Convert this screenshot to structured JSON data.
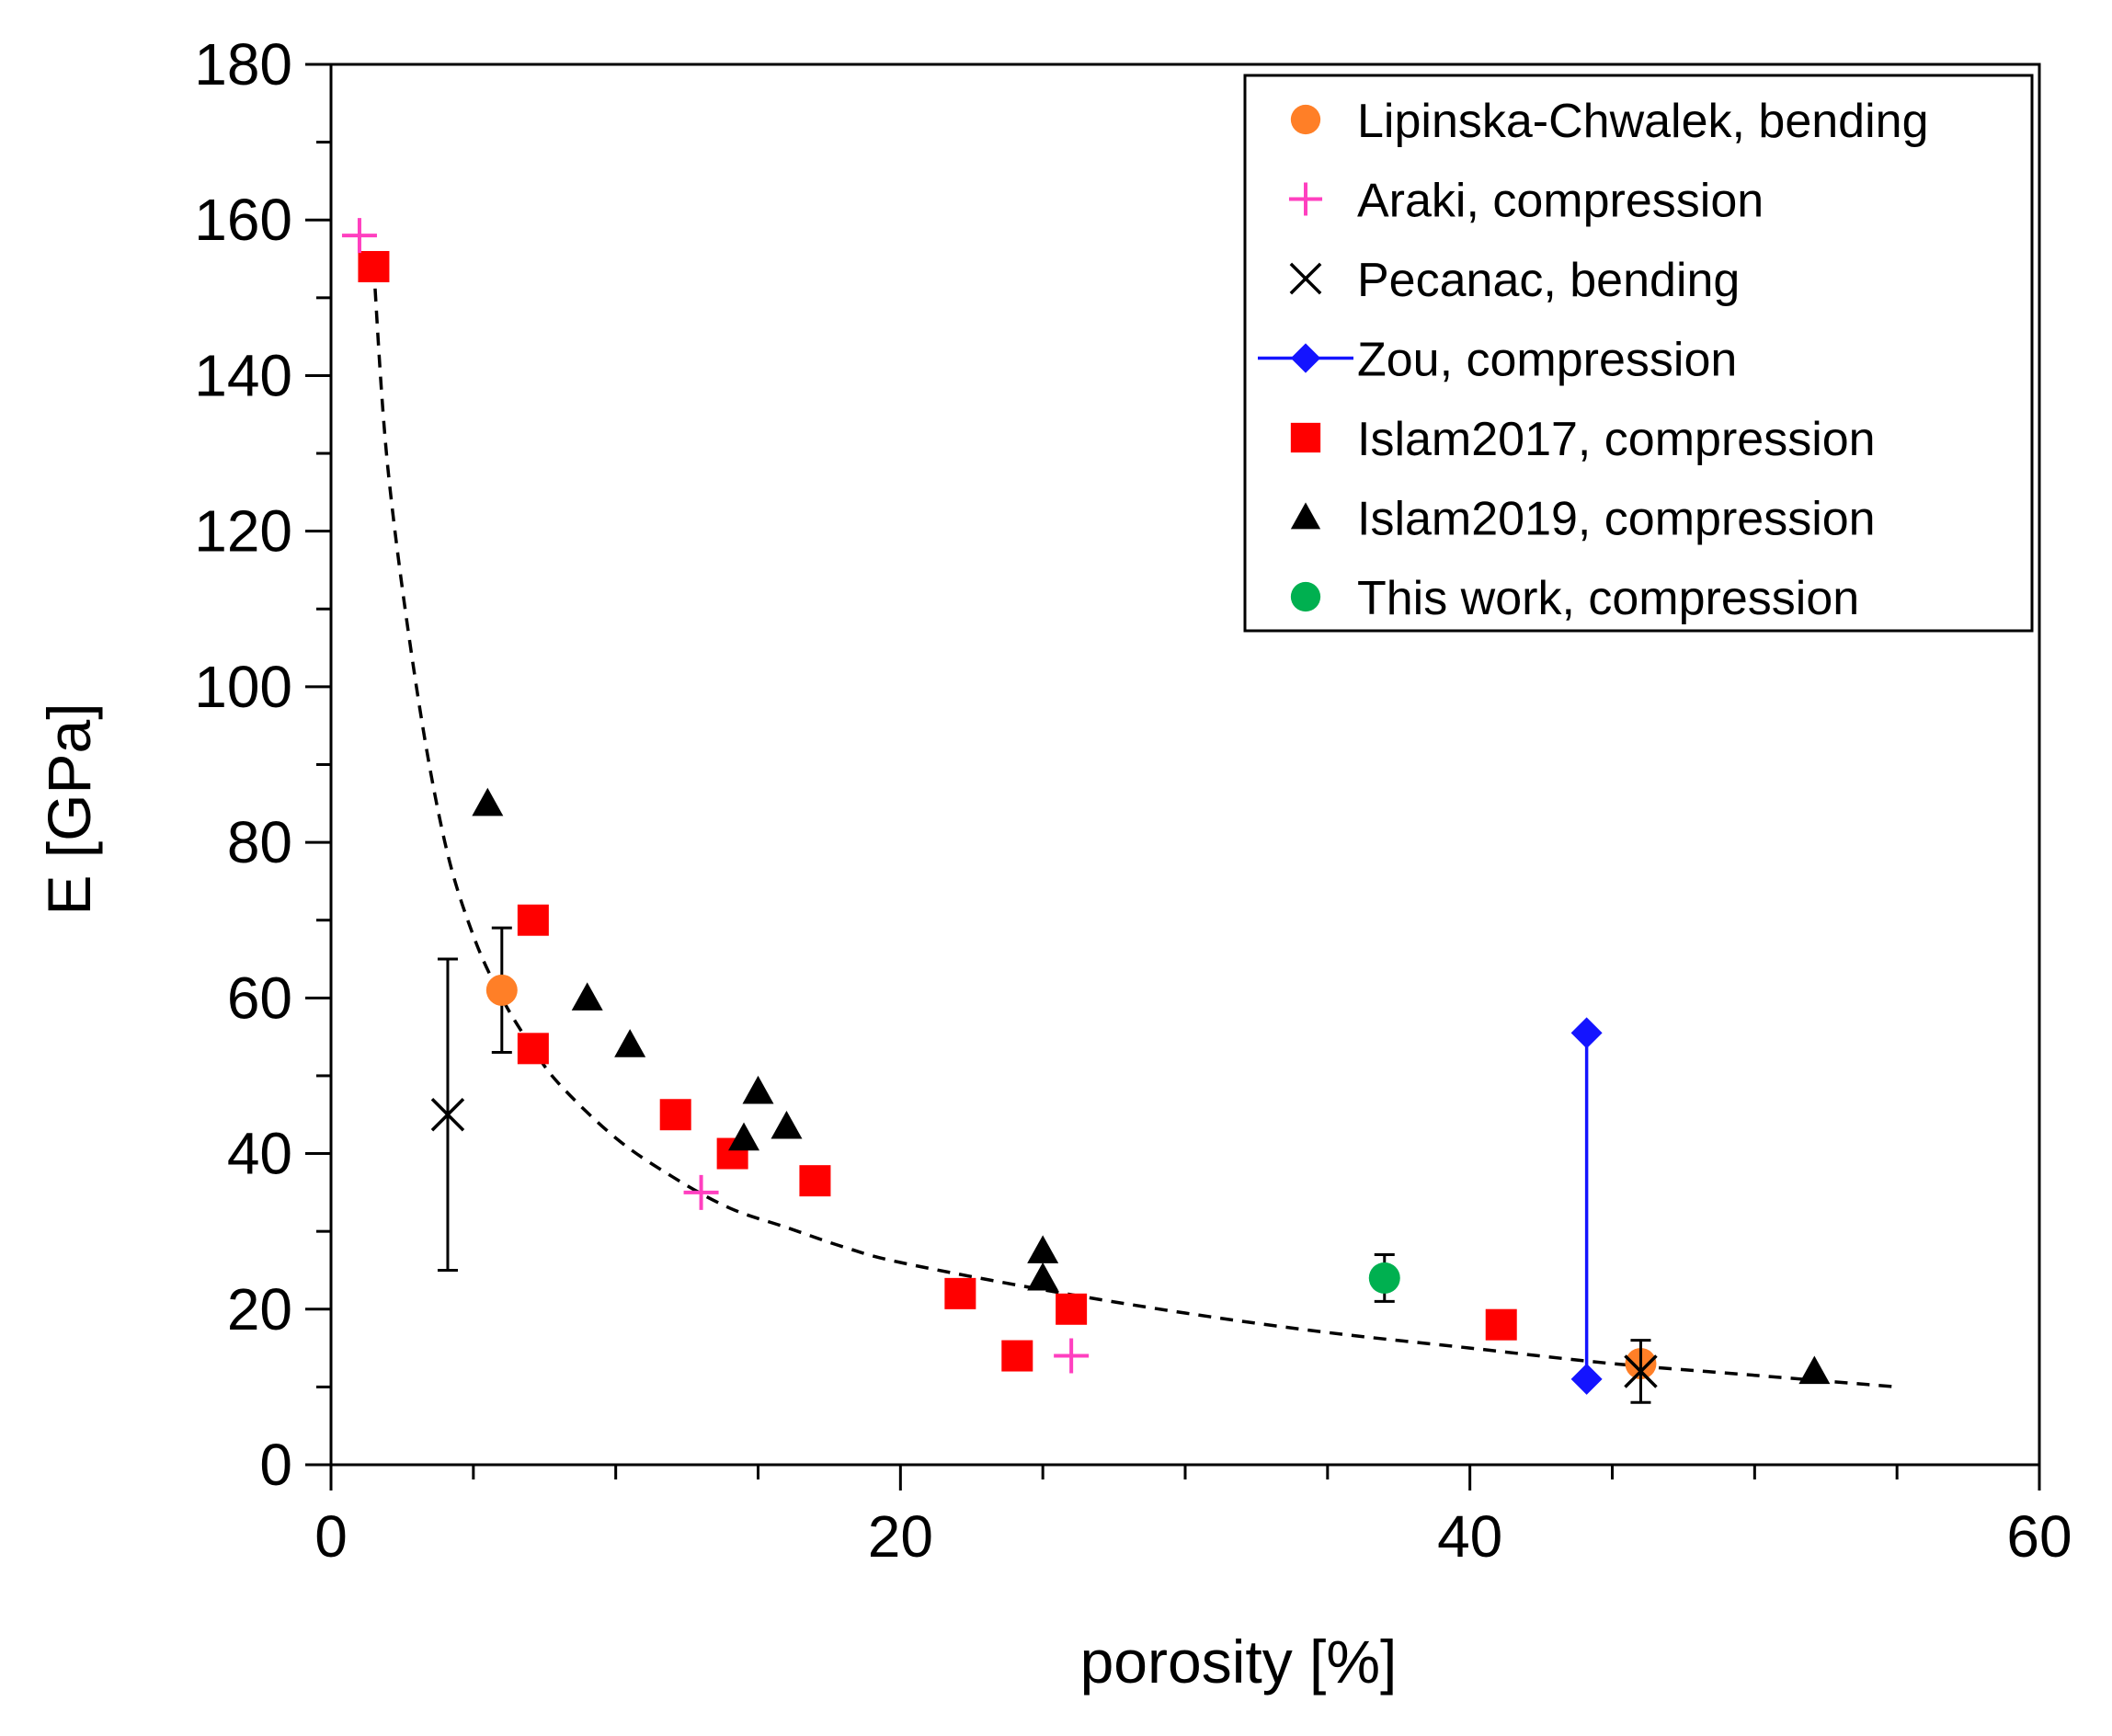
{
  "chart_data": {
    "type": "scatter",
    "title": "",
    "xlabel": "porosity [%]",
    "ylabel": "E [GPa]",
    "xlim": [
      0,
      60
    ],
    "ylim": [
      0,
      180
    ],
    "xticks": [
      0,
      20,
      40,
      60
    ],
    "yticks": [
      0,
      20,
      40,
      60,
      80,
      100,
      120,
      140,
      160,
      180
    ],
    "x_minor_step": 5,
    "y_minor_step": 10,
    "grid": false,
    "legend_position": "top-right",
    "series": [
      {
        "name": "Lipinska-Chwalek, bending",
        "marker": "circle",
        "color": "#ff7f27",
        "points": [
          {
            "x": 6.0,
            "y": 61,
            "err_low": 53,
            "err_high": 69
          },
          {
            "x": 46.0,
            "y": 13
          }
        ]
      },
      {
        "name": "Araki, compression",
        "marker": "plus",
        "color": "#ff3fbf",
        "points": [
          {
            "x": 1.0,
            "y": 158
          },
          {
            "x": 13.0,
            "y": 35
          },
          {
            "x": 26.0,
            "y": 14
          }
        ]
      },
      {
        "name": "Pecanac, bending",
        "marker": "x",
        "color": "#000000",
        "points": [
          {
            "x": 4.1,
            "y": 45,
            "err_low": 25,
            "err_high": 65
          },
          {
            "x": 46.0,
            "y": 12,
            "err_low": 8,
            "err_high": 16
          }
        ]
      },
      {
        "name": "Zou, compression",
        "marker": "diamond",
        "color": "#1414ff",
        "line": true,
        "points": [
          {
            "x": 44.1,
            "y": 55.5
          },
          {
            "x": 44.1,
            "y": 11
          }
        ]
      },
      {
        "name": "Islam2017, compression",
        "marker": "square",
        "color": "#ff0000",
        "points": [
          {
            "x": 1.5,
            "y": 154
          },
          {
            "x": 7.1,
            "y": 70
          },
          {
            "x": 7.1,
            "y": 53.5
          },
          {
            "x": 12.1,
            "y": 45
          },
          {
            "x": 14.1,
            "y": 40
          },
          {
            "x": 17.0,
            "y": 36.5
          },
          {
            "x": 22.1,
            "y": 22
          },
          {
            "x": 24.1,
            "y": 14
          },
          {
            "x": 26.0,
            "y": 20
          },
          {
            "x": 41.1,
            "y": 18
          }
        ]
      },
      {
        "name": "Islam2019, compression",
        "marker": "triangle",
        "color": "#000000",
        "points": [
          {
            "x": 5.5,
            "y": 85
          },
          {
            "x": 9.0,
            "y": 60
          },
          {
            "x": 10.5,
            "y": 54
          },
          {
            "x": 14.5,
            "y": 42
          },
          {
            "x": 15.0,
            "y": 48
          },
          {
            "x": 16.0,
            "y": 43.5
          },
          {
            "x": 25.0,
            "y": 27.5
          },
          {
            "x": 25.0,
            "y": 24
          },
          {
            "x": 52.1,
            "y": 12
          }
        ]
      },
      {
        "name": "This work, compression",
        "marker": "circle",
        "color": "#00b050",
        "points": [
          {
            "x": 37.0,
            "y": 24,
            "err_low": 21,
            "err_high": 27
          }
        ]
      }
    ],
    "fit_curve": {
      "style": "dashed",
      "color": "#000000",
      "points": [
        [
          1.5,
          154
        ],
        [
          2,
          128
        ],
        [
          3,
          100
        ],
        [
          4,
          80
        ],
        [
          5,
          68
        ],
        [
          6,
          60
        ],
        [
          7,
          54
        ],
        [
          8,
          49
        ],
        [
          10,
          42
        ],
        [
          12,
          37
        ],
        [
          14,
          33
        ],
        [
          16,
          30.5
        ],
        [
          18,
          28
        ],
        [
          20,
          26
        ],
        [
          25,
          22.5
        ],
        [
          30,
          19.5
        ],
        [
          35,
          17
        ],
        [
          40,
          15
        ],
        [
          45,
          13
        ],
        [
          50,
          11.5
        ],
        [
          55,
          10
        ]
      ]
    }
  }
}
